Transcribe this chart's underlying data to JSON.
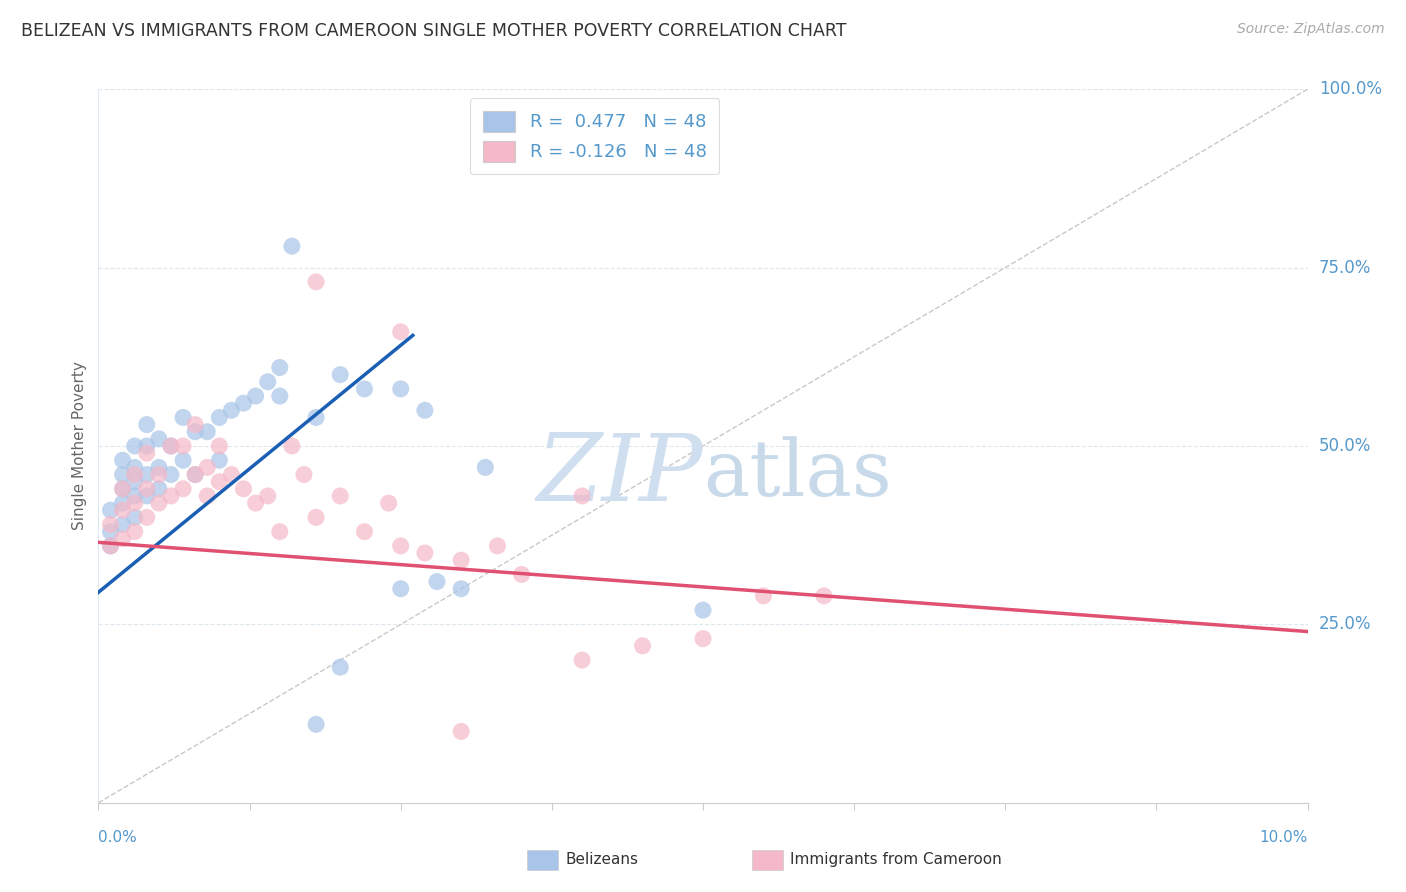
{
  "title": "BELIZEAN VS IMMIGRANTS FROM CAMEROON SINGLE MOTHER POVERTY CORRELATION CHART",
  "source": "Source: ZipAtlas.com",
  "ylabel": "Single Mother Poverty",
  "legend_blue_label": "R =  0.477   N = 48",
  "legend_pink_label": "R = -0.126   N = 48",
  "legend_bottom_blue": "Belizeans",
  "legend_bottom_pink": "Immigrants from Cameroon",
  "blue_color": "#a8c4e8",
  "pink_color": "#f5b8c8",
  "blue_line_color": "#1a5fb4",
  "pink_line_color": "#e05070",
  "diag_line_color": "#bbbbbb",
  "watermark_zip_color": "#d0dff0",
  "watermark_atlas_color": "#c8daea",
  "background_color": "#ffffff",
  "grid_color": "#dde8f0",
  "axis_label_color": "#5599cc",
  "title_color": "#333333",
  "source_color": "#aaaaaa",
  "xlim": [
    0,
    0.1
  ],
  "ylim": [
    0,
    1.0
  ],
  "ytick_vals": [
    0.25,
    0.5,
    0.75,
    1.0
  ],
  "ytick_labels": [
    "25.0%",
    "50.0%",
    "75.0%",
    "100.0%"
  ],
  "blue_line_x0": 0.0,
  "blue_line_y0": 0.295,
  "blue_line_x1": 0.026,
  "blue_line_y1": 0.655,
  "pink_line_x0": 0.0,
  "pink_line_y0": 0.365,
  "pink_line_x1": 0.1,
  "pink_line_y1": 0.24,
  "blue_x": [
    0.001,
    0.001,
    0.001,
    0.002,
    0.002,
    0.002,
    0.002,
    0.002,
    0.003,
    0.003,
    0.003,
    0.003,
    0.003,
    0.004,
    0.004,
    0.004,
    0.004,
    0.005,
    0.005,
    0.005,
    0.006,
    0.006,
    0.007,
    0.007,
    0.008,
    0.008,
    0.009,
    0.01,
    0.01,
    0.011,
    0.012,
    0.013,
    0.014,
    0.015,
    0.016,
    0.018,
    0.02,
    0.022,
    0.025,
    0.027,
    0.028,
    0.03,
    0.015,
    0.018,
    0.025,
    0.05,
    0.02,
    0.032
  ],
  "blue_y": [
    0.36,
    0.38,
    0.41,
    0.39,
    0.42,
    0.44,
    0.46,
    0.48,
    0.4,
    0.43,
    0.45,
    0.47,
    0.5,
    0.43,
    0.46,
    0.5,
    0.53,
    0.44,
    0.47,
    0.51,
    0.46,
    0.5,
    0.48,
    0.54,
    0.46,
    0.52,
    0.52,
    0.48,
    0.54,
    0.55,
    0.56,
    0.57,
    0.59,
    0.57,
    0.78,
    0.54,
    0.6,
    0.58,
    0.58,
    0.55,
    0.31,
    0.3,
    0.61,
    0.11,
    0.3,
    0.27,
    0.19,
    0.47
  ],
  "pink_x": [
    0.001,
    0.001,
    0.002,
    0.002,
    0.002,
    0.003,
    0.003,
    0.003,
    0.004,
    0.004,
    0.004,
    0.005,
    0.005,
    0.006,
    0.006,
    0.007,
    0.007,
    0.008,
    0.008,
    0.009,
    0.009,
    0.01,
    0.01,
    0.011,
    0.012,
    0.013,
    0.014,
    0.015,
    0.016,
    0.017,
    0.018,
    0.02,
    0.022,
    0.024,
    0.025,
    0.027,
    0.03,
    0.033,
    0.035,
    0.04,
    0.045,
    0.05,
    0.018,
    0.025,
    0.03,
    0.04,
    0.055,
    0.06
  ],
  "pink_y": [
    0.36,
    0.39,
    0.37,
    0.41,
    0.44,
    0.38,
    0.42,
    0.46,
    0.4,
    0.44,
    0.49,
    0.42,
    0.46,
    0.43,
    0.5,
    0.44,
    0.5,
    0.46,
    0.53,
    0.43,
    0.47,
    0.45,
    0.5,
    0.46,
    0.44,
    0.42,
    0.43,
    0.38,
    0.5,
    0.46,
    0.4,
    0.43,
    0.38,
    0.42,
    0.36,
    0.35,
    0.34,
    0.36,
    0.32,
    0.43,
    0.22,
    0.23,
    0.73,
    0.66,
    0.1,
    0.2,
    0.29,
    0.29
  ]
}
